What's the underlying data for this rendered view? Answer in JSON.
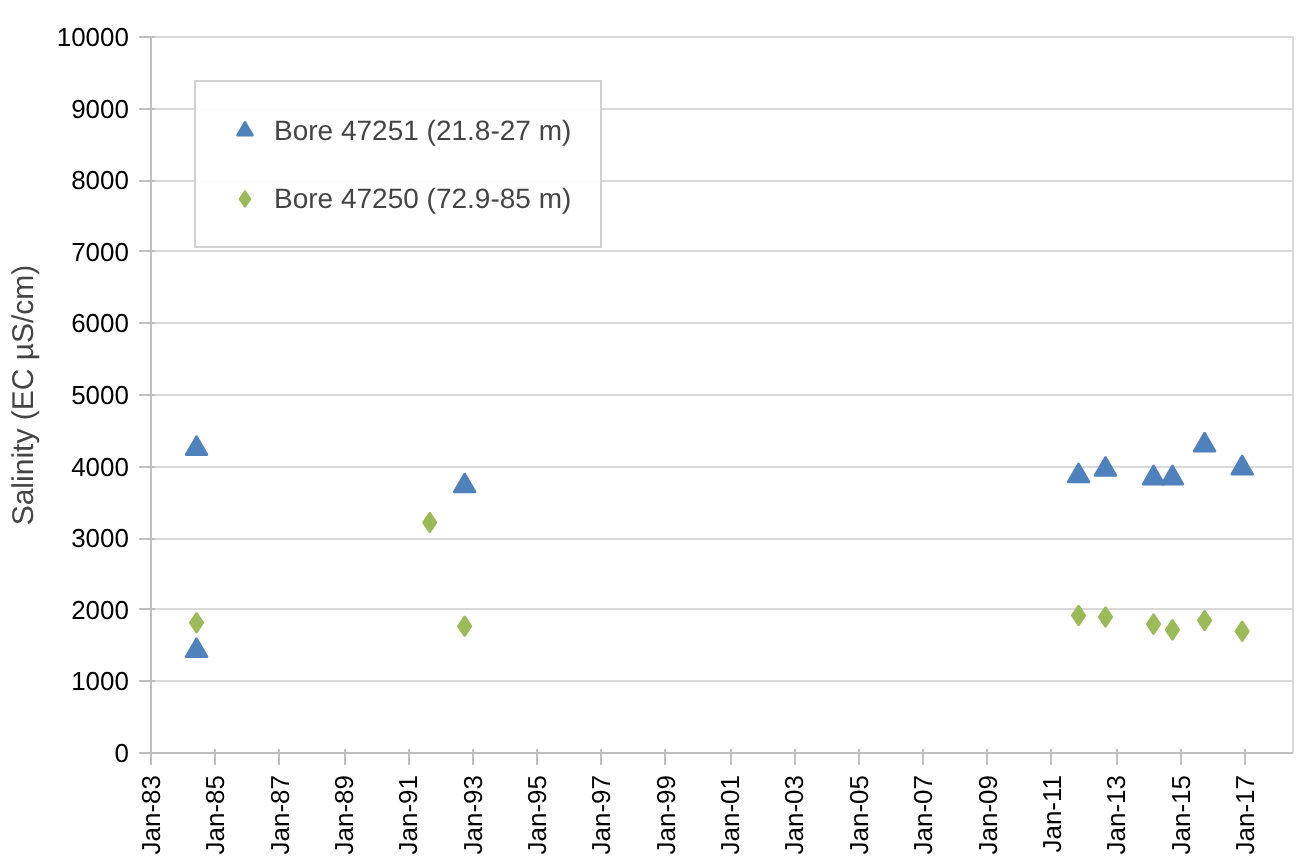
{
  "chart_data": {
    "type": "scatter",
    "ylabel": "Salinity (EC µS/cm)",
    "xlim": [
      "1983-01",
      "2018-07"
    ],
    "ylim": [
      0,
      10000
    ],
    "xticks": [
      {
        "value": "1983-01",
        "label": "Jan-83"
      },
      {
        "value": "1985-01",
        "label": "Jan-85"
      },
      {
        "value": "1987-01",
        "label": "Jan-87"
      },
      {
        "value": "1989-01",
        "label": "Jan-89"
      },
      {
        "value": "1991-01",
        "label": "Jan-91"
      },
      {
        "value": "1993-01",
        "label": "Jan-93"
      },
      {
        "value": "1995-01",
        "label": "Jan-95"
      },
      {
        "value": "1997-01",
        "label": "Jan-97"
      },
      {
        "value": "1999-01",
        "label": "Jan-99"
      },
      {
        "value": "2001-01",
        "label": "Jan-01"
      },
      {
        "value": "2003-01",
        "label": "Jan-03"
      },
      {
        "value": "2005-01",
        "label": "Jan-05"
      },
      {
        "value": "2007-01",
        "label": "Jan-07"
      },
      {
        "value": "2009-01",
        "label": "Jan-09"
      },
      {
        "value": "2011-01",
        "label": "Jan-11"
      },
      {
        "value": "2013-01",
        "label": "Jan-13"
      },
      {
        "value": "2015-01",
        "label": "Jan-15"
      },
      {
        "value": "2017-01",
        "label": "Jan-17"
      }
    ],
    "yticks": [
      0,
      1000,
      2000,
      3000,
      4000,
      5000,
      6000,
      7000,
      8000,
      9000,
      10000
    ],
    "grid": "y",
    "legend": "top left",
    "series": [
      {
        "name": "Bore 47251 (21.8-27 m)",
        "color": "#4f81bd",
        "marker": "triangle",
        "x": [
          "1984-06",
          "1984-06",
          "1992-10",
          "2011-11",
          "2012-09",
          "2014-03",
          "2014-10",
          "2015-10",
          "2016-12"
        ],
        "values": [
          4250,
          1430,
          3730,
          3870,
          3960,
          3840,
          3840,
          4300,
          3980
        ]
      },
      {
        "name": "Bore 47250 (72.9-85 m)",
        "color": "#9bbb59",
        "marker": "diamond",
        "x": [
          "1984-06",
          "1991-09",
          "1992-10",
          "2011-11",
          "2012-09",
          "2014-03",
          "2014-10",
          "2015-10",
          "2016-12"
        ],
        "values": [
          1820,
          3220,
          1770,
          1920,
          1900,
          1800,
          1720,
          1850,
          1700
        ]
      }
    ]
  }
}
